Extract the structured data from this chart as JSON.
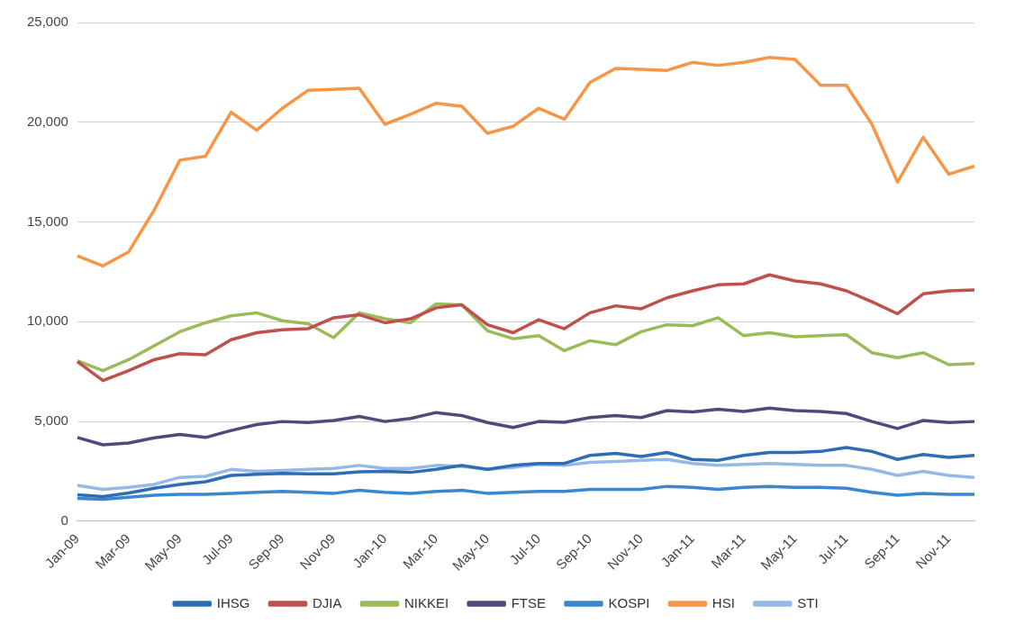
{
  "chart_data": {
    "type": "line",
    "categories": [
      "Jan-09",
      null,
      "Mar-09",
      null,
      "May-09",
      null,
      "Jul-09",
      null,
      "Sep-09",
      null,
      "Nov-09",
      null,
      "Jan-10",
      null,
      "Mar-10",
      null,
      "May-10",
      null,
      "Jul-10",
      null,
      "Sep-10",
      null,
      "Nov-10",
      null,
      "Jan-11",
      null,
      "Mar-11",
      null,
      "May-11",
      null,
      "Jul-11",
      null,
      "Sep-11",
      null,
      "Nov-11",
      null
    ],
    "series": [
      {
        "name": "IHSG",
        "color": "#2e6db4",
        "values": [
          1330,
          1240,
          1420,
          1650,
          1850,
          1980,
          2300,
          2350,
          2400,
          2380,
          2380,
          2480,
          2500,
          2450,
          2600,
          2800,
          2600,
          2800,
          2900,
          2900,
          3300,
          3400,
          3250,
          3450,
          3100,
          3050,
          3300,
          3450,
          3450,
          3500,
          3700,
          3500,
          3100,
          3350,
          3200,
          3300
        ]
      },
      {
        "name": "DJIA",
        "color": "#c0504d",
        "values": [
          8000,
          7050,
          7550,
          8100,
          8400,
          8350,
          9100,
          9450,
          9600,
          9650,
          10200,
          10350,
          9950,
          10150,
          10700,
          10850,
          9850,
          9450,
          10100,
          9650,
          10450,
          10800,
          10650,
          11200,
          11550,
          11850,
          11900,
          12350,
          12050,
          11900,
          11550,
          11000,
          10400,
          11400,
          11550,
          11600
        ]
      },
      {
        "name": "NIKKEI",
        "color": "#9bbb59",
        "values": [
          8050,
          7550,
          8100,
          8800,
          9500,
          9950,
          10300,
          10450,
          10050,
          9900,
          9200,
          10450,
          10150,
          9950,
          10900,
          10850,
          9550,
          9150,
          9300,
          8550,
          9050,
          8850,
          9500,
          9850,
          9800,
          10200,
          9300,
          9450,
          9250,
          9300,
          9350,
          8450,
          8200,
          8450,
          7850,
          7900
        ]
      },
      {
        "name": "FTSE",
        "color": "#4f4a7a",
        "values": [
          4200,
          3830,
          3920,
          4180,
          4350,
          4200,
          4550,
          4850,
          5000,
          4950,
          5050,
          5250,
          5000,
          5150,
          5450,
          5300,
          4950,
          4700,
          5000,
          4960,
          5200,
          5300,
          5200,
          5550,
          5480,
          5620,
          5500,
          5670,
          5550,
          5500,
          5400,
          5000,
          4650,
          5050,
          4950,
          5000
        ]
      },
      {
        "name": "KOSPI",
        "color": "#3a87cf",
        "values": [
          1150,
          1100,
          1200,
          1300,
          1350,
          1350,
          1400,
          1450,
          1500,
          1450,
          1400,
          1550,
          1450,
          1400,
          1500,
          1550,
          1400,
          1450,
          1500,
          1500,
          1600,
          1600,
          1600,
          1750,
          1700,
          1600,
          1700,
          1750,
          1700,
          1700,
          1650,
          1450,
          1300,
          1400,
          1350,
          1350
        ]
      },
      {
        "name": "HSI",
        "color": "#f79646",
        "values": [
          13300,
          12800,
          13500,
          15600,
          18100,
          18300,
          20500,
          19600,
          20700,
          21600,
          21650,
          21700,
          19900,
          20400,
          20950,
          20800,
          19450,
          19800,
          20700,
          20150,
          22000,
          22700,
          22650,
          22600,
          23000,
          22850,
          23000,
          23250,
          23150,
          21850,
          21850,
          19900,
          17000,
          19250,
          17400,
          17800
        ]
      },
      {
        "name": "STI",
        "color": "#95b9e6",
        "values": [
          1800,
          1600,
          1700,
          1850,
          2200,
          2250,
          2600,
          2500,
          2550,
          2600,
          2650,
          2800,
          2650,
          2650,
          2800,
          2750,
          2600,
          2700,
          2850,
          2800,
          2950,
          3000,
          3050,
          3100,
          2900,
          2800,
          2850,
          2900,
          2850,
          2800,
          2800,
          2600,
          2300,
          2500,
          2300,
          2200
        ]
      }
    ],
    "ylim": [
      0,
      25000
    ],
    "yticks": [
      0,
      {
        "value": 5000,
        "label": "5,000"
      },
      {
        "value": 10000,
        "label": "10,000"
      },
      {
        "value": 15000,
        "label": "15,000"
      },
      {
        "value": 20000,
        "label": "20,000"
      },
      {
        "value": 25000,
        "label": "25,000"
      }
    ],
    "grid": "y",
    "legend": "bottom",
    "marker": "none",
    "line_style": "solid"
  }
}
